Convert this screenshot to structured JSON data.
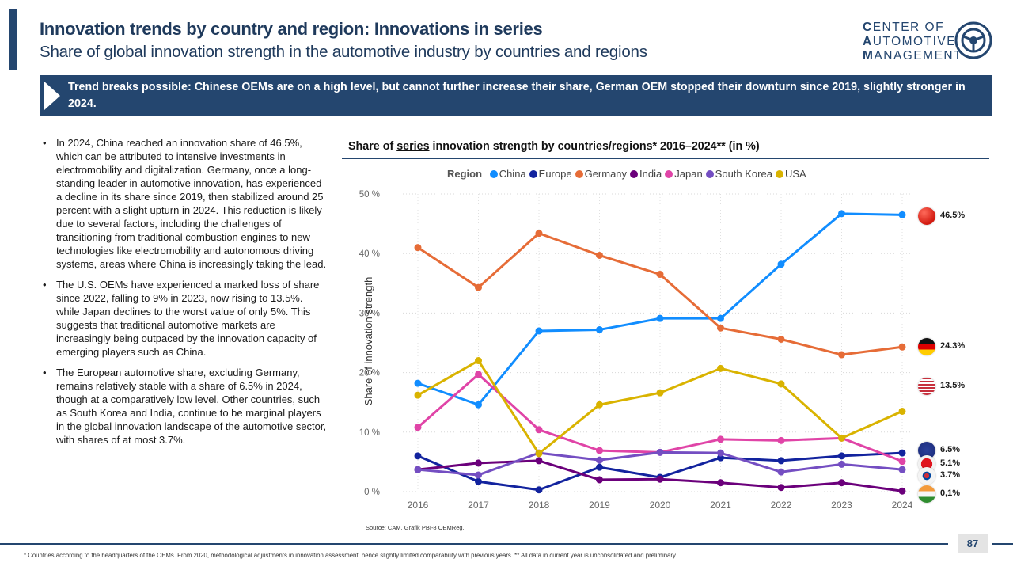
{
  "header": {
    "title": "Innovation trends by country and region: Innovations in series",
    "subtitle": "Share of global innovation strength in the automotive industry by countries and regions"
  },
  "logo": {
    "line1_first": "C",
    "line1_rest": "ENTER OF",
    "line2_first": "A",
    "line2_rest": "UTOMOTIVE",
    "line3_first": "M",
    "line3_rest": "ANAGEMENT"
  },
  "banner": {
    "text": "Trend breaks possible: Chinese OEMs are on a high level, but cannot further increase their share, German OEM stopped their downturn since 2019, slightly stronger in 2024."
  },
  "bullets": [
    "In 2024, China reached an innovation share of 46.5%, which can be attributed to intensive investments in electromobility and digitalization. Germany, once a long-standing leader in automotive innovation, has experienced a decline in its share since 2019, then stabilized around 25 percent with a slight upturn in 2024. This reduction is likely due to several factors, including the challenges of transitioning from traditional combustion engines to new technologies like electromobility and autonomous driving systems, areas where China is increasingly taking the lead.",
    "The U.S. OEMs have experienced a marked loss of share since 2022, falling to 9% in 2023, now rising to 13.5%. while Japan declines to the worst value of only 5%. This suggests that traditional automotive markets are increasingly being outpaced by the innovation capacity of emerging players such as China.",
    "The European automotive share, excluding Germany, remains relatively stable with a share of 6.5% in 2024, though at a comparatively low level. Other countries, such as South Korea and India, continue to be marginal players in the global innovation landscape of the automotive sector, with shares of at most 3.7%."
  ],
  "chart_title": {
    "prefix": "Share of ",
    "underlined": "series",
    "suffix": " innovation strength by countries/regions* 2016–2024** (in %)"
  },
  "chart_data": {
    "type": "line",
    "title": "Share of series innovation strength by countries/regions* 2016–2024** (in %)",
    "xlabel": "",
    "ylabel": "Share of innovation strength",
    "legend_title": "Region",
    "legend_position": "top",
    "x": [
      "2016",
      "2017",
      "2018",
      "2019",
      "2020",
      "2021",
      "2022",
      "2023",
      "2024"
    ],
    "ylim": [
      0,
      50
    ],
    "yticks": [
      "0 %",
      "10 %",
      "20 %",
      "30 %",
      "40 %",
      "50 %"
    ],
    "grid": true,
    "series": [
      {
        "name": "China",
        "color": "#118dff",
        "values": [
          18.2,
          14.6,
          27.0,
          27.2,
          29.1,
          29.1,
          38.2,
          46.7,
          46.5
        ]
      },
      {
        "name": "Europe",
        "color": "#12239e",
        "values": [
          6.0,
          1.7,
          0.3,
          4.1,
          2.4,
          5.7,
          5.2,
          6.0,
          6.5
        ]
      },
      {
        "name": "Germany",
        "color": "#e66c37",
        "values": [
          41.0,
          34.3,
          43.4,
          39.7,
          36.5,
          27.5,
          25.6,
          23.0,
          24.3
        ]
      },
      {
        "name": "India",
        "color": "#6b007b",
        "values": [
          3.7,
          4.8,
          5.2,
          2.0,
          2.1,
          1.5,
          0.7,
          1.5,
          0.1
        ]
      },
      {
        "name": "Japan",
        "color": "#e044a7",
        "values": [
          10.8,
          19.7,
          10.4,
          6.9,
          6.6,
          8.8,
          8.6,
          9.0,
          5.1
        ]
      },
      {
        "name": "South Korea",
        "color": "#744ec2",
        "values": [
          3.7,
          2.8,
          6.5,
          5.3,
          6.6,
          6.5,
          3.3,
          4.6,
          3.7
        ]
      },
      {
        "name": "USA",
        "color": "#d9b300",
        "values": [
          16.2,
          22.0,
          6.4,
          14.6,
          16.6,
          20.7,
          18.1,
          9.0,
          13.5
        ]
      }
    ],
    "end_labels": [
      {
        "region": "China",
        "flag": "china-flag",
        "label": "46.5%"
      },
      {
        "region": "Germany",
        "flag": "germany-flag",
        "label": "24.3%"
      },
      {
        "region": "USA",
        "flag": "usa-flag",
        "label": "13.5%"
      },
      {
        "region": "Europe",
        "flag": "eu-flag",
        "label": "6.5%"
      },
      {
        "region": "Japan",
        "flag": "japan-flag",
        "label": "5.1%"
      },
      {
        "region": "South Korea",
        "flag": "south-korea-flag",
        "label": "3.7%"
      },
      {
        "region": "India",
        "flag": "india-flag",
        "label": "0,1%"
      }
    ]
  },
  "source": "Source: CAM. Grafik PBI-8 OEMReg.",
  "footnote": "* Countries according to the headquarters of the OEMs. From 2020, methodological adjustments in innovation assessment, hence slightly limited comparability with previous years.   ** All data in current year is unconsolidated and preliminary.",
  "page_number": "87"
}
